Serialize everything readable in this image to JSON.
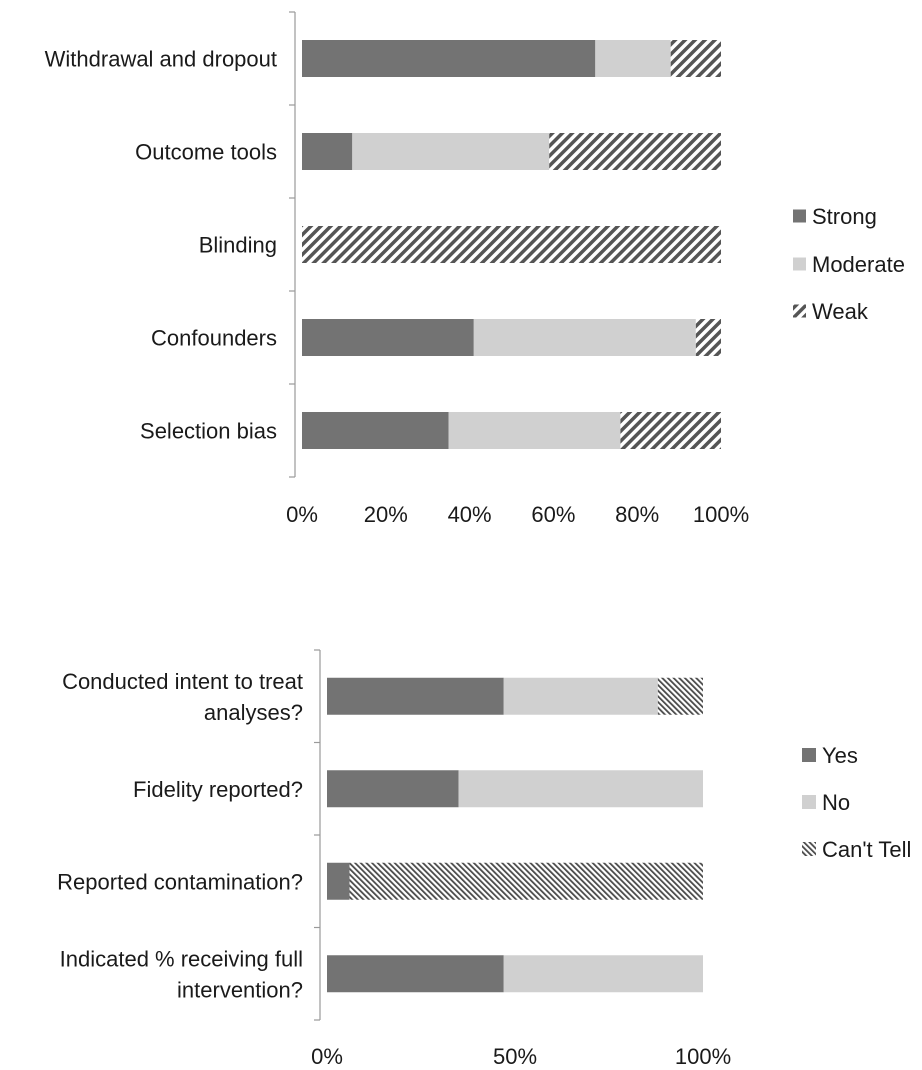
{
  "chart_data": [
    {
      "type": "bar",
      "orientation": "horizontal",
      "stacked": true,
      "title": "",
      "xlabel": "",
      "ylabel": "",
      "xlim": [
        0,
        100
      ],
      "x_unit": "%",
      "x_ticks": [
        "0%",
        "20%",
        "40%",
        "60%",
        "80%",
        "100%"
      ],
      "categories": [
        "Withdrawal and dropout",
        "Outcome tools",
        "Blinding",
        "Confounders",
        "Selection bias"
      ],
      "series": [
        {
          "name": "Strong",
          "color": "#737373",
          "fill": "solid",
          "values": [
            70,
            12,
            0,
            41,
            35
          ]
        },
        {
          "name": "Moderate",
          "color": "#d0d0d0",
          "fill": "solid",
          "values": [
            18,
            47,
            0,
            53,
            41
          ]
        },
        {
          "name": "Weak",
          "color": "#555555",
          "fill": "wide-diagonal-hatch",
          "values": [
            12,
            41,
            100,
            6,
            24
          ]
        }
      ],
      "legend_position": "right",
      "grid": false
    },
    {
      "type": "bar",
      "orientation": "horizontal",
      "stacked": true,
      "title": "",
      "xlabel": "",
      "ylabel": "",
      "xlim": [
        0,
        100
      ],
      "x_unit": "%",
      "x_ticks": [
        "0%",
        "50%",
        "100%"
      ],
      "categories": [
        [
          "Conducted intent to treat",
          "analyses?"
        ],
        [
          "Fidelity reported?"
        ],
        [
          "Reported contamination?"
        ],
        [
          "Indicated % receiving full",
          "intervention?"
        ]
      ],
      "series": [
        {
          "name": "Yes",
          "color": "#737373",
          "fill": "solid",
          "values": [
            47,
            35,
            6,
            47
          ]
        },
        {
          "name": "No",
          "color": "#d0d0d0",
          "fill": "solid",
          "values": [
            41,
            65,
            0,
            53
          ]
        },
        {
          "name": "Can't Tell",
          "color": "#555555",
          "fill": "fine-diagonal-hatch",
          "values": [
            12,
            0,
            94,
            0
          ]
        }
      ],
      "legend_position": "right",
      "grid": false
    }
  ]
}
